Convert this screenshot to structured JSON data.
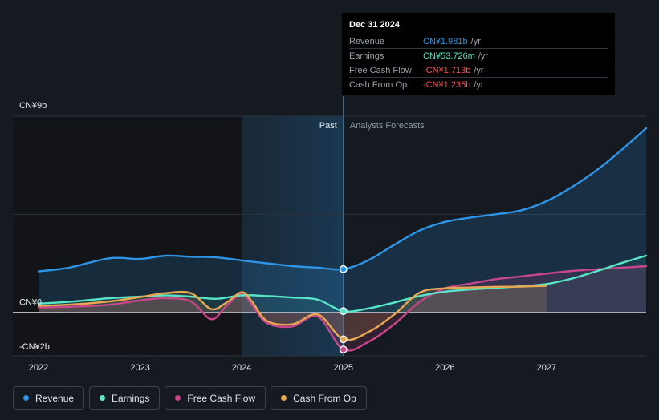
{
  "chart_data": {
    "type": "line",
    "currency_unit": "CN¥",
    "x_start": 2022.0,
    "x_end": 2027.98,
    "ylim": [
      -2,
      9
    ],
    "y_tick_labels": [
      {
        "value": 9,
        "label": "CN¥9b"
      },
      {
        "value": 0,
        "label": "CN¥0"
      },
      {
        "value": -2,
        "label": "-CN¥2b"
      }
    ],
    "x_tick_labels": [
      {
        "value": 2022,
        "label": "2022"
      },
      {
        "value": 2023,
        "label": "2023"
      },
      {
        "value": 2024,
        "label": "2024"
      },
      {
        "value": 2025,
        "label": "2025"
      },
      {
        "value": 2026,
        "label": "2026"
      },
      {
        "value": 2027,
        "label": "2027"
      }
    ],
    "divider_x": 2025.0,
    "highlight_start": 2024.0,
    "past_label": "Past",
    "forecast_label": "Analysts Forecasts",
    "series": [
      {
        "name": "Revenue",
        "color": "#2e94e5",
        "points": [
          [
            2022,
            1.88
          ],
          [
            2022.3,
            2.05
          ],
          [
            2022.7,
            2.48
          ],
          [
            2023.0,
            2.45
          ],
          [
            2023.25,
            2.6
          ],
          [
            2023.5,
            2.55
          ],
          [
            2023.75,
            2.52
          ],
          [
            2024.0,
            2.38
          ],
          [
            2024.25,
            2.25
          ],
          [
            2024.5,
            2.12
          ],
          [
            2024.75,
            2.05
          ],
          [
            2025.0,
            1.98
          ],
          [
            2025.25,
            2.4
          ],
          [
            2025.5,
            3.1
          ],
          [
            2025.75,
            3.75
          ],
          [
            2026.0,
            4.15
          ],
          [
            2026.25,
            4.35
          ],
          [
            2026.5,
            4.5
          ],
          [
            2026.75,
            4.68
          ],
          [
            2027.0,
            5.1
          ],
          [
            2027.25,
            5.75
          ],
          [
            2027.5,
            6.55
          ],
          [
            2027.75,
            7.5
          ],
          [
            2027.98,
            8.45
          ]
        ]
      },
      {
        "name": "Earnings",
        "color": "#58e6c6",
        "points": [
          [
            2022,
            0.4
          ],
          [
            2022.3,
            0.48
          ],
          [
            2022.7,
            0.65
          ],
          [
            2023.0,
            0.72
          ],
          [
            2023.25,
            0.78
          ],
          [
            2023.5,
            0.72
          ],
          [
            2023.75,
            0.62
          ],
          [
            2024.0,
            0.78
          ],
          [
            2024.25,
            0.75
          ],
          [
            2024.5,
            0.68
          ],
          [
            2024.75,
            0.58
          ],
          [
            2025.0,
            0.054
          ],
          [
            2025.25,
            0.18
          ],
          [
            2025.5,
            0.45
          ],
          [
            2025.75,
            0.75
          ],
          [
            2026.0,
            0.95
          ],
          [
            2026.25,
            1.05
          ],
          [
            2026.5,
            1.12
          ],
          [
            2026.75,
            1.2
          ],
          [
            2027.0,
            1.3
          ],
          [
            2027.25,
            1.55
          ],
          [
            2027.5,
            1.9
          ],
          [
            2027.75,
            2.28
          ],
          [
            2027.98,
            2.6
          ]
        ]
      },
      {
        "name": "Free Cash Flow",
        "color": "#c8468a",
        "points": [
          [
            2022,
            0.22
          ],
          [
            2022.3,
            0.25
          ],
          [
            2022.7,
            0.35
          ],
          [
            2023.0,
            0.55
          ],
          [
            2023.25,
            0.65
          ],
          [
            2023.5,
            0.5
          ],
          [
            2023.7,
            -0.32
          ],
          [
            2023.85,
            0.3
          ],
          [
            2024.0,
            0.85
          ],
          [
            2024.1,
            0.35
          ],
          [
            2024.25,
            -0.5
          ],
          [
            2024.5,
            -0.65
          ],
          [
            2024.75,
            -0.2
          ],
          [
            2025.0,
            -1.71
          ],
          [
            2025.25,
            -1.35
          ],
          [
            2025.5,
            -0.55
          ],
          [
            2025.75,
            0.48
          ],
          [
            2026.0,
            1.1
          ],
          [
            2026.25,
            1.32
          ],
          [
            2026.5,
            1.52
          ],
          [
            2026.75,
            1.65
          ],
          [
            2027.0,
            1.78
          ],
          [
            2027.25,
            1.9
          ],
          [
            2027.5,
            1.98
          ],
          [
            2027.75,
            2.05
          ],
          [
            2027.98,
            2.12
          ]
        ]
      },
      {
        "name": "Cash From Op",
        "color": "#e8a852",
        "points": [
          [
            2022,
            0.3
          ],
          [
            2022.3,
            0.35
          ],
          [
            2022.7,
            0.5
          ],
          [
            2023.0,
            0.7
          ],
          [
            2023.25,
            0.88
          ],
          [
            2023.5,
            0.88
          ],
          [
            2023.7,
            0.15
          ],
          [
            2023.85,
            0.45
          ],
          [
            2024.0,
            0.92
          ],
          [
            2024.1,
            0.5
          ],
          [
            2024.25,
            -0.4
          ],
          [
            2024.5,
            -0.55
          ],
          [
            2024.75,
            -0.1
          ],
          [
            2025.0,
            -1.24
          ],
          [
            2025.25,
            -0.9
          ],
          [
            2025.5,
            -0.1
          ],
          [
            2025.75,
            0.9
          ],
          [
            2026.0,
            1.1
          ],
          [
            2026.25,
            1.14
          ],
          [
            2026.5,
            1.17
          ],
          [
            2026.75,
            1.18
          ],
          [
            2027.0,
            1.22
          ]
        ]
      }
    ],
    "markers": [
      {
        "series": "Revenue",
        "x": 2025.0,
        "y": 1.98
      },
      {
        "series": "Earnings",
        "x": 2025.0,
        "y": 0.054
      },
      {
        "series": "Cash From Op",
        "x": 2025.0,
        "y": -1.24
      },
      {
        "series": "Free Cash Flow",
        "x": 2025.0,
        "y": -1.71
      }
    ]
  },
  "tooltip": {
    "date": "Dec 31 2024",
    "unit": "/yr",
    "rows": [
      {
        "label": "Revenue",
        "value": "CN¥1.981b",
        "color": "#2e94e5"
      },
      {
        "label": "Earnings",
        "value": "CN¥53.726m",
        "color": "#58e6c6"
      },
      {
        "label": "Free Cash Flow",
        "value": "-CN¥1.713b",
        "color": "#ff4d4d"
      },
      {
        "label": "Cash From Op",
        "value": "-CN¥1.235b",
        "color": "#ff4d4d"
      }
    ]
  },
  "legend": {
    "items": [
      {
        "label": "Revenue",
        "color": "#2e94e5"
      },
      {
        "label": "Earnings",
        "color": "#58e6c6"
      },
      {
        "label": "Free Cash Flow",
        "color": "#c8468a"
      },
      {
        "label": "Cash From Op",
        "color": "#e8a852"
      }
    ]
  }
}
